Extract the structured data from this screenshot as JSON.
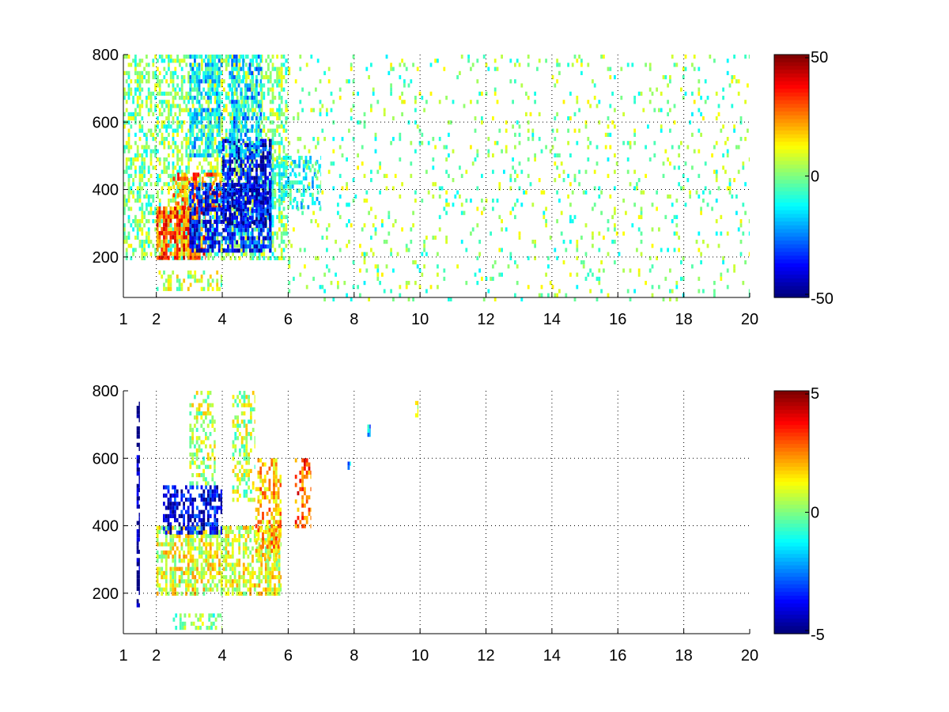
{
  "chart_data": [
    {
      "type": "heatmap",
      "title": "",
      "xlabel": "",
      "ylabel": "",
      "xlim": [
        1,
        20
      ],
      "ylim": [
        80,
        800
      ],
      "x_ticks": [
        "1",
        "2",
        "4",
        "6",
        "8",
        "10",
        "12",
        "14",
        "16",
        "18",
        "20"
      ],
      "y_ticks": [
        "200",
        "400",
        "600",
        "800"
      ],
      "grid": true,
      "grid_style": "dotted",
      "colormap": "jet",
      "colorbar": {
        "min": -50,
        "max": 50,
        "ticks": [
          "50",
          "0",
          "-50"
        ]
      },
      "value_regions": [
        {
          "x": [
            1.0,
            6.0
          ],
          "y": [
            200,
            800
          ],
          "value": 0,
          "density": 0.55
        },
        {
          "x": [
            2.0,
            3.5
          ],
          "y": [
            200,
            350
          ],
          "value": 30,
          "density": 0.85
        },
        {
          "x": [
            2.5,
            4.0
          ],
          "y": [
            350,
            450
          ],
          "value": 25,
          "density": 0.6
        },
        {
          "x": [
            3.0,
            5.5
          ],
          "y": [
            220,
            420
          ],
          "value": -35,
          "density": 0.8
        },
        {
          "x": [
            4.0,
            5.5
          ],
          "y": [
            300,
            550
          ],
          "value": -40,
          "density": 0.7
        },
        {
          "x": [
            3.0,
            4.0
          ],
          "y": [
            500,
            800
          ],
          "value": -15,
          "density": 0.6
        },
        {
          "x": [
            4.2,
            5.2
          ],
          "y": [
            500,
            800
          ],
          "value": -18,
          "density": 0.6
        },
        {
          "x": [
            2.0,
            4.0
          ],
          "y": [
            100,
            160
          ],
          "value": 5,
          "density": 0.5
        },
        {
          "x": [
            5.5,
            7.0
          ],
          "y": [
            350,
            500
          ],
          "value": -10,
          "density": 0.5
        },
        {
          "x": [
            6.0,
            20.0
          ],
          "y": [
            80,
            800
          ],
          "value": 0,
          "density": 0.09
        }
      ]
    },
    {
      "type": "heatmap",
      "title": "",
      "xlabel": "",
      "ylabel": "",
      "xlim": [
        1,
        20
      ],
      "ylim": [
        80,
        800
      ],
      "x_ticks": [
        "1",
        "2",
        "4",
        "6",
        "8",
        "10",
        "12",
        "14",
        "16",
        "18",
        "20"
      ],
      "y_ticks": [
        "200",
        "400",
        "600",
        "800"
      ],
      "grid": true,
      "grid_style": "dotted",
      "colormap": "jet",
      "colorbar": {
        "min": -5,
        "max": 5,
        "ticks": [
          "5",
          "0",
          "-5"
        ]
      },
      "value_regions": [
        {
          "x": [
            2.0,
            5.8
          ],
          "y": [
            200,
            400
          ],
          "value": 1,
          "density": 0.7
        },
        {
          "x": [
            2.2,
            4.0
          ],
          "y": [
            380,
            520
          ],
          "value": -4,
          "density": 0.6
        },
        {
          "x": [
            3.0,
            3.8
          ],
          "y": [
            520,
            800
          ],
          "value": 0.5,
          "density": 0.45
        },
        {
          "x": [
            4.3,
            5.0
          ],
          "y": [
            480,
            800
          ],
          "value": 0.5,
          "density": 0.45
        },
        {
          "x": [
            5.0,
            5.8
          ],
          "y": [
            300,
            600
          ],
          "value": 2,
          "density": 0.6
        },
        {
          "x": [
            6.2,
            6.7
          ],
          "y": [
            400,
            600
          ],
          "value": 3,
          "density": 0.45
        },
        {
          "x": [
            2.5,
            4.0
          ],
          "y": [
            100,
            140
          ],
          "value": 0,
          "density": 0.45
        },
        {
          "x": [
            1.4,
            1.5
          ],
          "y": [
            160,
            780
          ],
          "value": -5,
          "density": 0.9
        },
        {
          "x": [
            8.4,
            8.5
          ],
          "y": [
            670,
            700
          ],
          "value": -2,
          "density": 1.0
        },
        {
          "x": [
            9.85,
            9.95
          ],
          "y": [
            730,
            770
          ],
          "value": 1,
          "density": 1.0
        },
        {
          "x": [
            7.8,
            7.9
          ],
          "y": [
            570,
            590
          ],
          "value": -2,
          "density": 1.0
        }
      ]
    }
  ]
}
